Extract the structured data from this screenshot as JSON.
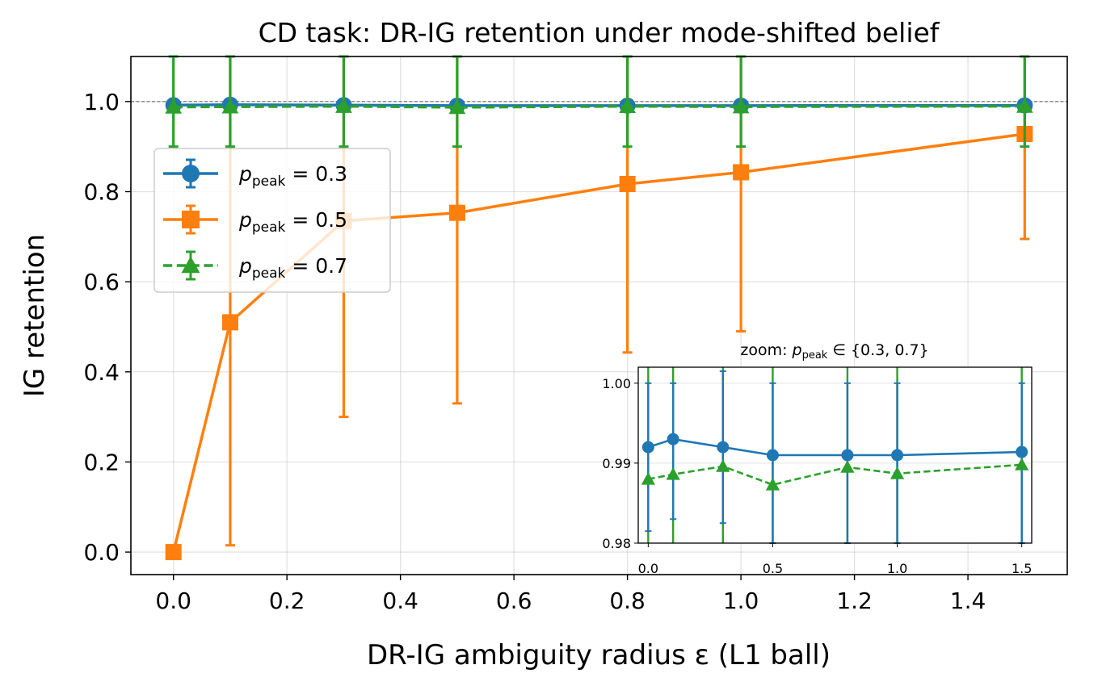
{
  "chart_data": [
    {
      "type": "line",
      "title": "CD task: DR-IG retention under mode-shifted belief",
      "xlabel": "DR-IG ambiguity radius ε (L1 ball)",
      "ylabel": "IG retention",
      "x": [
        0.0,
        0.1,
        0.3,
        0.5,
        0.8,
        1.0,
        1.5
      ],
      "xticks": [
        0.0,
        0.2,
        0.4,
        0.6,
        0.8,
        1.0,
        1.2,
        1.4
      ],
      "xtick_labels": [
        "0.0",
        "0.2",
        "0.4",
        "0.6",
        "0.8",
        "1.0",
        "1.2",
        "1.4"
      ],
      "yticks": [
        0.0,
        0.2,
        0.4,
        0.6,
        0.8,
        1.0
      ],
      "ytick_labels": [
        "0.0",
        "0.2",
        "0.4",
        "0.6",
        "0.8",
        "1.0"
      ],
      "xlim": [
        -0.075,
        1.575
      ],
      "ylim": [
        -0.05,
        1.1
      ],
      "reference_line": 1.0,
      "grid": true,
      "legend_position": "upper-left",
      "series": [
        {
          "name": "p_peak = 0.3",
          "legend_label_prefix": "p",
          "legend_label_sub": "peak",
          "legend_label_suffix": " = 0.3",
          "color": "#1f77b4",
          "marker": "circle",
          "linestyle": "solid",
          "values": [
            0.992,
            0.993,
            0.992,
            0.991,
            0.991,
            0.991,
            0.9914
          ],
          "err_low": [
            0.9815,
            0.983,
            0.9825,
            0.98,
            0.98,
            0.98,
            0.98
          ],
          "err_high": [
            1.0,
            1.0,
            1.0015,
            1.0,
            1.0,
            1.0,
            1.0
          ]
        },
        {
          "name": "p_peak = 0.5",
          "legend_label_prefix": "p",
          "legend_label_sub": "peak",
          "legend_label_suffix": " = 0.5",
          "color": "#ff7f0e",
          "marker": "square",
          "linestyle": "solid",
          "values": [
            0.0,
            0.51,
            0.735,
            0.753,
            0.817,
            0.843,
            0.928
          ],
          "err_low": [
            0.0,
            0.015,
            0.3,
            0.33,
            0.443,
            0.49,
            0.695
          ],
          "err_high": [
            0.0,
            1.1,
            1.1,
            1.1,
            1.1,
            1.1,
            1.1
          ]
        },
        {
          "name": "p_peak = 0.7",
          "legend_label_prefix": "p",
          "legend_label_sub": "peak",
          "legend_label_suffix": " = 0.7",
          "color": "#2ca02c",
          "marker": "triangle",
          "linestyle": "dashed",
          "values": [
            0.988,
            0.9886,
            0.9896,
            0.9873,
            0.9895,
            0.9887,
            0.9898
          ],
          "err_low": [
            0.9,
            0.9,
            0.9,
            0.9,
            0.9,
            0.9,
            0.9
          ],
          "err_high": [
            1.1,
            1.1,
            1.1,
            1.1,
            1.1,
            1.1,
            1.1
          ]
        }
      ]
    },
    {
      "type": "line",
      "title_prefix": "zoom: ",
      "title_math_var": "p",
      "title_math_sub": "peak",
      "title_math_rest": " ∈ {0.3, 0.7}",
      "xlim": [
        -0.04,
        1.54
      ],
      "ylim": [
        0.98,
        1.002
      ],
      "xticks": [
        0.0,
        0.5,
        1.0,
        1.5
      ],
      "xtick_labels": [
        "0.0",
        "0.5",
        "1.0",
        "1.5"
      ],
      "yticks": [
        0.98,
        0.99,
        1.0
      ],
      "ytick_labels": [
        "0.98",
        "0.99",
        "1.00"
      ],
      "series_refs": [
        "p_peak = 0.3",
        "p_peak = 0.7"
      ]
    }
  ]
}
